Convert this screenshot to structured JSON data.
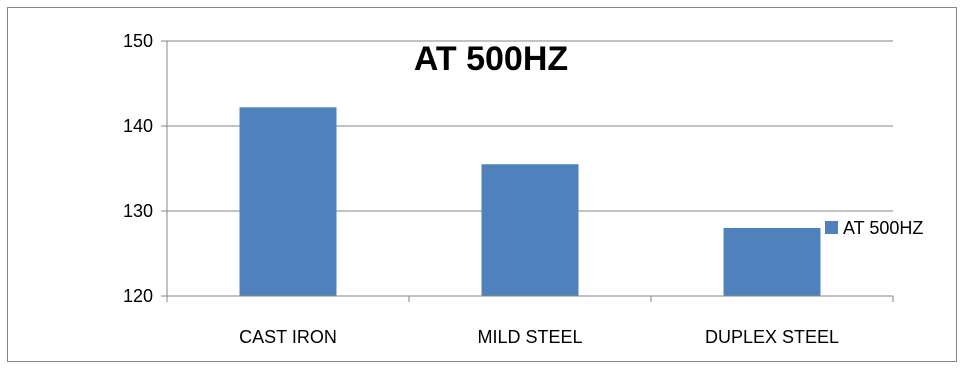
{
  "chart_data": {
    "type": "bar",
    "title": "AT 500HZ",
    "xlabel": "",
    "ylabel": "",
    "categories": [
      "CAST IRON",
      "MILD STEEL",
      "DUPLEX STEEL"
    ],
    "series": [
      {
        "name": "AT 500HZ",
        "values": [
          142.2,
          135.5,
          128.0
        ],
        "color": "#4f81bd"
      }
    ],
    "ylim": [
      120,
      150
    ],
    "yticks": [
      "120",
      "130",
      "140",
      "150"
    ],
    "grid": true,
    "legend": "right"
  }
}
